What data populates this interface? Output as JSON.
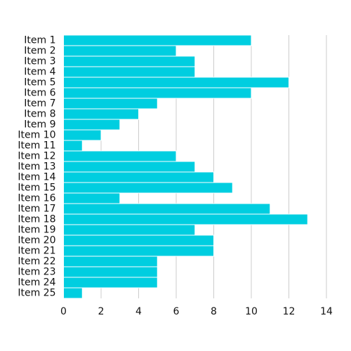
{
  "chart_data": {
    "type": "bar",
    "orientation": "horizontal",
    "title": "",
    "xlabel": "",
    "ylabel": "",
    "categories": [
      "Item 1",
      "Item 2",
      "Item 3",
      "Item 4",
      "Item 5",
      "Item 6",
      "Item 7",
      "Item 8",
      "Item 9",
      "Item 10",
      "Item 11",
      "Item 12",
      "Item 13",
      "Item 14",
      "Item 15",
      "Item 16",
      "Item 17",
      "Item 18",
      "Item 19",
      "Item 20",
      "Item 21",
      "Item 22",
      "Item 23",
      "Item 24",
      "Item 25"
    ],
    "values": [
      10,
      6,
      7,
      7,
      12,
      10,
      5,
      4,
      3,
      2,
      1,
      6,
      7,
      8,
      9,
      3,
      11,
      13,
      7,
      8,
      8,
      5,
      5,
      5,
      1
    ],
    "xlim": [
      0,
      14
    ],
    "xticks": [
      "0",
      "2",
      "4",
      "6",
      "8",
      "10",
      "12",
      "14"
    ],
    "grid": "vertical",
    "legend": "none",
    "colors": {
      "bar": "#00CEE0",
      "bar_edge": "#ffffff",
      "grid": "#cccccc",
      "text": "#111111"
    }
  }
}
